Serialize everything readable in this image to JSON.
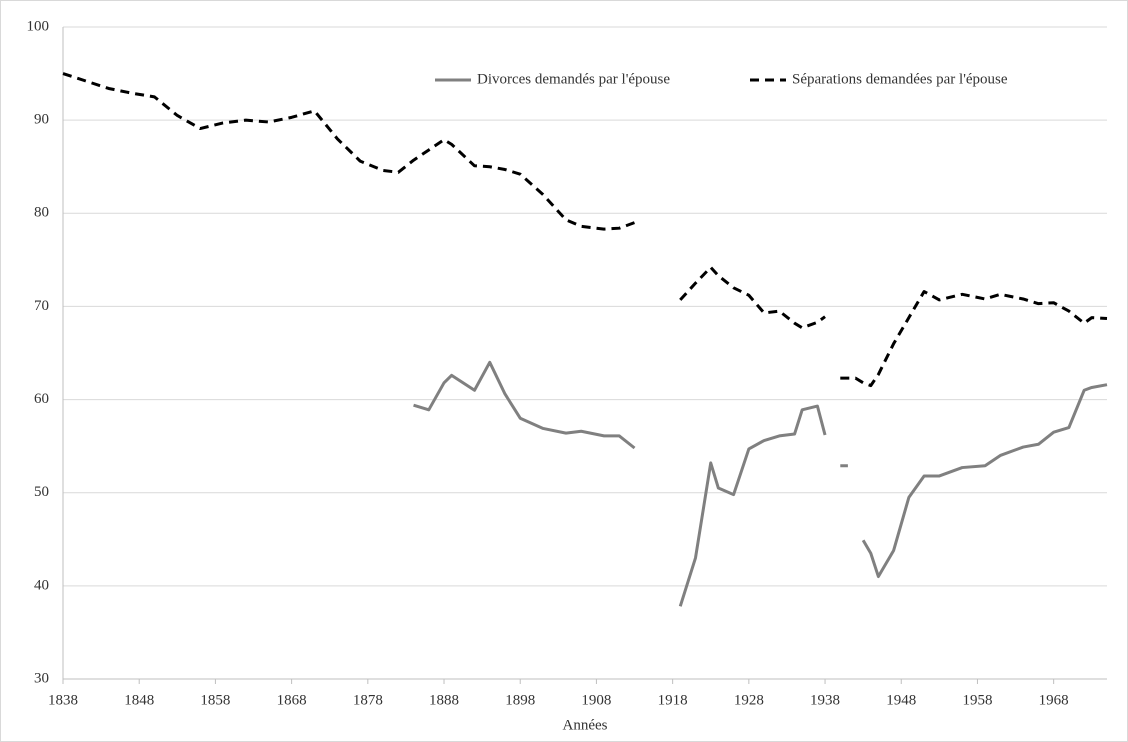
{
  "chart_data": {
    "type": "line",
    "x_label": "Années",
    "x": [
      1838,
      1841,
      1844,
      1847,
      1850,
      1853,
      1856,
      1859,
      1862,
      1865,
      1868,
      1871,
      1874,
      1877,
      1880,
      1882,
      1884,
      1886,
      1888,
      1889,
      1892,
      1894,
      1896,
      1898,
      1901,
      1904,
      1906,
      1909,
      1911,
      1913,
      1916,
      1919,
      1921,
      1923,
      1924,
      1926,
      1928,
      1930,
      1932,
      1934,
      1935,
      1937,
      1938,
      1939,
      1940,
      1941,
      1942,
      1943,
      1944,
      1945,
      1947,
      1949,
      1951,
      1953,
      1956,
      1959,
      1961,
      1964,
      1966,
      1968,
      1970,
      1972,
      1973,
      1975
    ],
    "series": [
      {
        "name": "Divorces demandés par l'épouse",
        "color": "#808080",
        "line_style": "solid",
        "values": [
          null,
          null,
          null,
          null,
          null,
          null,
          null,
          null,
          null,
          null,
          null,
          null,
          null,
          null,
          null,
          null,
          59.4,
          58.9,
          61.8,
          62.6,
          61,
          64,
          60.6,
          58,
          56.9,
          56.4,
          56.6,
          56.1,
          56.1,
          54.8,
          null,
          37.8,
          43,
          53.2,
          50.5,
          49.8,
          54.7,
          55.6,
          56.1,
          56.3,
          58.9,
          59.3,
          56.2,
          null,
          52.9,
          52.9,
          null,
          44.9,
          43.5,
          41,
          43.8,
          49.5,
          51.8,
          51.8,
          52.7,
          52.9,
          54,
          54.9,
          55.2,
          56.5,
          57,
          61,
          61.3,
          61.6
        ]
      },
      {
        "name": "Séparations demandées par l'épouse",
        "color": "#000000",
        "line_style": "dashed",
        "values": [
          95,
          94.2,
          93.4,
          92.9,
          92.5,
          90.5,
          89.1,
          89.7,
          90,
          89.8,
          90.3,
          91,
          88,
          85.6,
          84.6,
          84.4,
          85.7,
          86.8,
          87.9,
          87.4,
          85.1,
          85,
          84.7,
          84.2,
          82,
          79.3,
          78.6,
          78.3,
          78.4,
          79,
          null,
          70.7,
          72.5,
          74.2,
          73.3,
          72,
          71.2,
          69.3,
          69.5,
          68.2,
          67.7,
          68.3,
          68.9,
          null,
          62.3,
          62.3,
          62.3,
          61.8,
          61.5,
          62.7,
          66,
          68.8,
          71.6,
          70.7,
          71.3,
          70.8,
          71.3,
          70.8,
          70.3,
          70.4,
          69.5,
          68.2,
          68.8,
          68.7
        ]
      }
    ],
    "xlim": [
      1838,
      1975
    ],
    "xticks": [
      1838,
      1848,
      1858,
      1868,
      1878,
      1888,
      1898,
      1908,
      1918,
      1928,
      1938,
      1948,
      1958,
      1968
    ],
    "ylim": [
      30,
      100
    ],
    "yticks": [
      30,
      40,
      50,
      60,
      70,
      80,
      90,
      100
    ],
    "grid": true,
    "legend": "top"
  }
}
